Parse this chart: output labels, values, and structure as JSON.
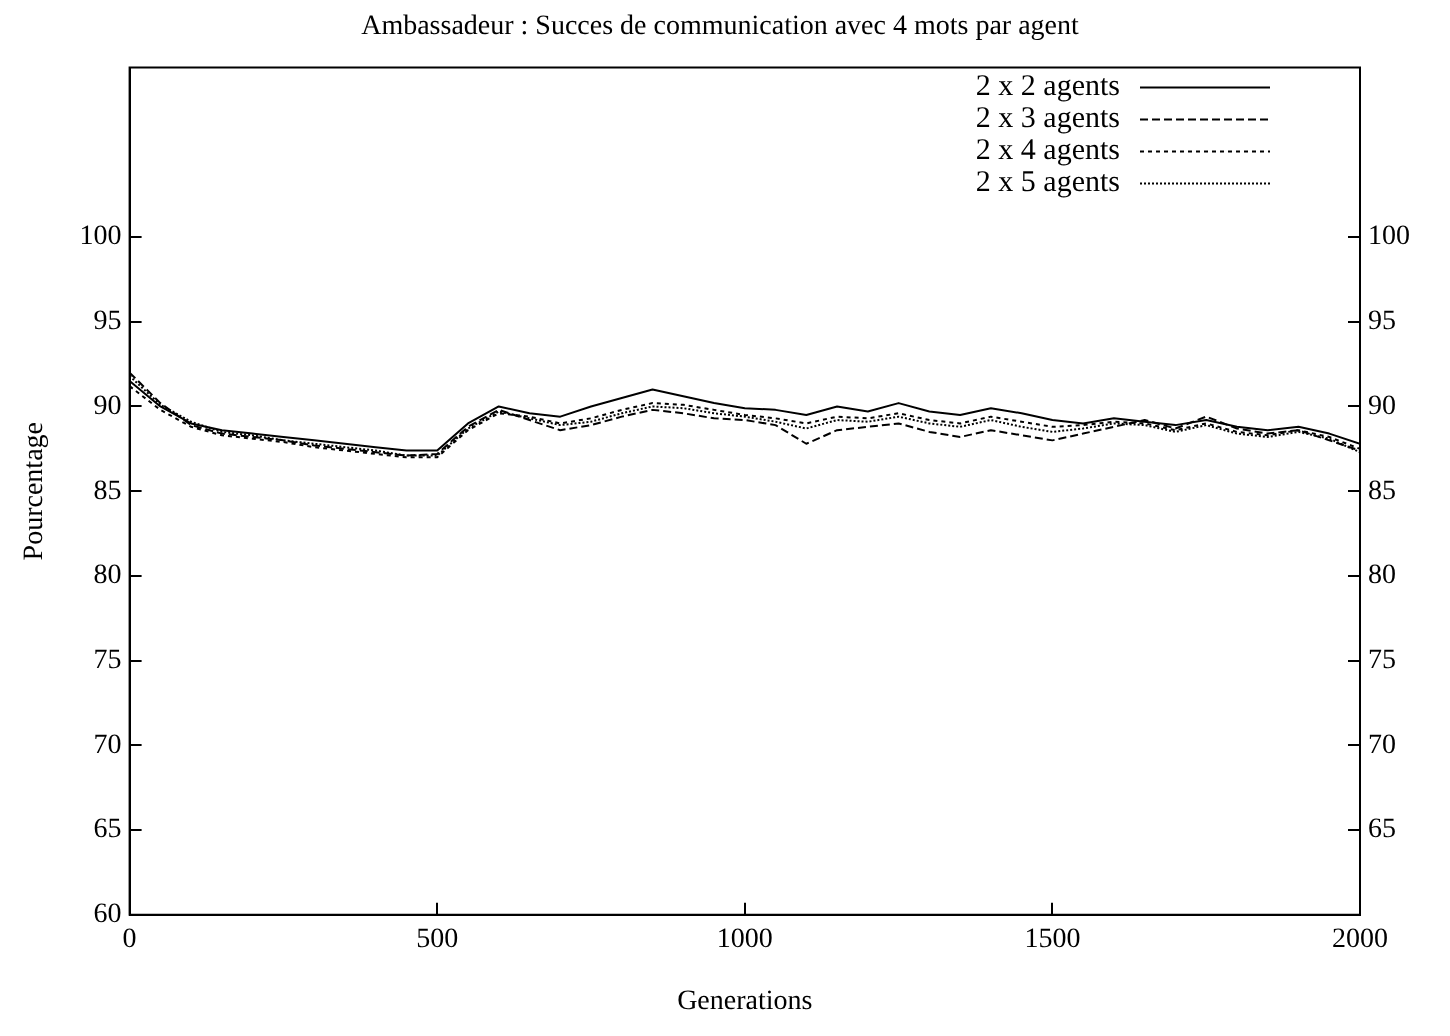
{
  "chart_data": {
    "type": "line",
    "title": "Ambassadeur : Succes de communication avec 4 mots par agent",
    "xlabel": "Generations",
    "ylabel": "Pourcentage",
    "x": [
      0,
      50,
      100,
      150,
      200,
      250,
      300,
      350,
      400,
      450,
      500,
      550,
      600,
      650,
      700,
      750,
      800,
      850,
      900,
      950,
      1000,
      1050,
      1100,
      1150,
      1200,
      1250,
      1300,
      1350,
      1400,
      1450,
      1500,
      1550,
      1600,
      1650,
      1700,
      1750,
      1800,
      1850,
      1900,
      1950,
      2000
    ],
    "series": [
      {
        "name": "2 x 2 agents",
        "color": "#000000",
        "line_style": "solid",
        "values": [
          91.5,
          90,
          89,
          88.6,
          88.4,
          88.2,
          88,
          87.8,
          87.6,
          87.4,
          87.4,
          89,
          90,
          89.6,
          89.4,
          90,
          90.5,
          91,
          90.6,
          90.2,
          89.9,
          89.8,
          89.5,
          90,
          89.7,
          90.2,
          89.7,
          89.5,
          89.9,
          89.6,
          89.2,
          89,
          89.3,
          89.1,
          88.9,
          89.2,
          88.8,
          88.6,
          88.8,
          88.4,
          87.8
        ]
      },
      {
        "name": "2 x 3 agents",
        "color": "#000000",
        "line_style": "dashed",
        "values": [
          92,
          90.2,
          88.9,
          88.4,
          88.2,
          88,
          87.7,
          87.5,
          87.3,
          87.1,
          87.2,
          88.8,
          89.8,
          89.2,
          88.6,
          88.9,
          89.4,
          89.8,
          89.6,
          89.3,
          89.2,
          88.9,
          87.8,
          88.6,
          88.8,
          89,
          88.5,
          88.2,
          88.6,
          88.3,
          88,
          88.4,
          88.8,
          89.2,
          88.7,
          89.4,
          88.7,
          88.4,
          88.6,
          88,
          87.4
        ]
      },
      {
        "name": "2 x 4 agents",
        "color": "#000000",
        "line_style": "dotted",
        "values": [
          91.2,
          89.8,
          88.8,
          88.3,
          88.1,
          87.9,
          87.6,
          87.4,
          87.2,
          87,
          87,
          88.6,
          89.6,
          89.4,
          89,
          89.3,
          89.8,
          90.2,
          90.1,
          89.8,
          89.5,
          89.3,
          89,
          89.4,
          89.3,
          89.6,
          89.2,
          89,
          89.4,
          89.1,
          88.8,
          88.9,
          89.1,
          89,
          88.6,
          89,
          88.5,
          88.3,
          88.6,
          88.2,
          87.5
        ]
      },
      {
        "name": "2 x 5 agents",
        "color": "#000000",
        "line_style": "dotted",
        "values": [
          91.8,
          90.1,
          89.1,
          88.5,
          88.3,
          88,
          87.8,
          87.6,
          87.4,
          87.1,
          87.1,
          88.7,
          89.7,
          89.3,
          88.9,
          89.1,
          89.6,
          90,
          89.9,
          89.6,
          89.4,
          89.1,
          88.7,
          89.2,
          89.1,
          89.4,
          89,
          88.8,
          89.2,
          88.8,
          88.5,
          88.7,
          89,
          88.9,
          88.5,
          88.9,
          88.4,
          88.2,
          88.5,
          88.1,
          87.3
        ]
      }
    ],
    "xlim": [
      0,
      2000
    ],
    "xticks": [
      0,
      500,
      1000,
      1500,
      2000
    ],
    "ylim": [
      60,
      110
    ],
    "yticks": [
      60,
      65,
      70,
      75,
      80,
      85,
      90,
      95,
      100
    ],
    "y2lim": [
      60,
      110
    ],
    "y2ticks": [
      65,
      70,
      75,
      80,
      85,
      90,
      95,
      100
    ],
    "grid": false,
    "legend": "top right",
    "marker": "none"
  }
}
